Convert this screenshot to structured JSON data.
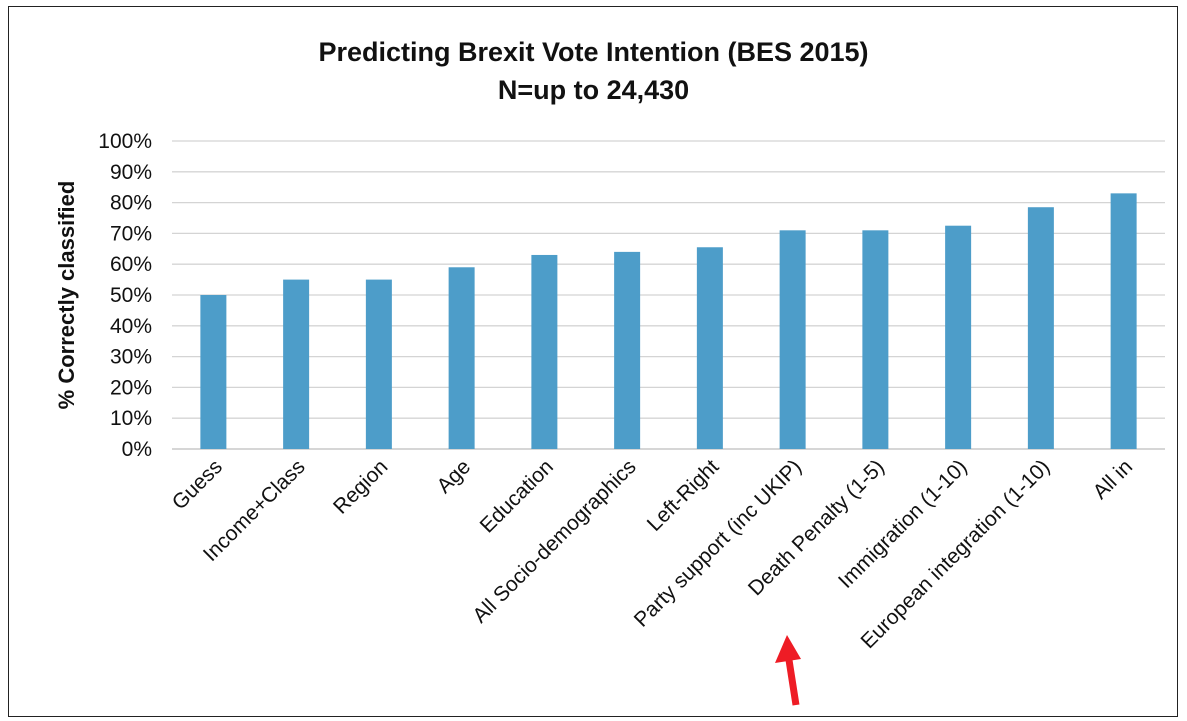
{
  "chart_data": {
    "type": "bar",
    "title": "Predicting Brexit Vote Intention (BES 2015)",
    "subtitle": "N=up to 24,430",
    "xlabel": "",
    "ylabel": "% Correctly classified",
    "ylim": [
      0,
      100
    ],
    "yticks": [
      "0%",
      "10%",
      "20%",
      "30%",
      "40%",
      "50%",
      "60%",
      "70%",
      "80%",
      "90%",
      "100%"
    ],
    "categories": [
      "Guess",
      "Income+Class",
      "Region",
      "Age",
      "Education",
      "All Socio-demographics",
      "Left-Right",
      "Party support (inc UKIP)",
      "Death Penalty (1-5)",
      "Immigration (1-10)",
      "European integration (1-10)",
      "All in"
    ],
    "values": [
      50,
      55,
      55,
      59,
      63,
      64,
      65.5,
      71,
      71,
      72.5,
      78.5,
      83
    ],
    "bar_color": "#4d9dc9",
    "grid": true,
    "annotation_color": "#ee1c25",
    "annotation_points_to": "Death Penalty (1-5)"
  }
}
